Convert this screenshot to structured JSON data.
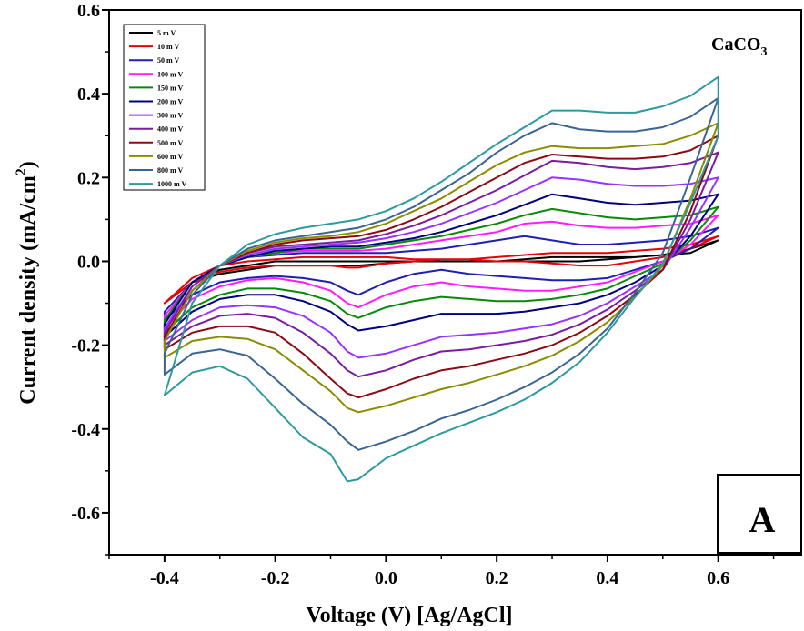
{
  "chart_data": {
    "type": "line",
    "xlabel": "Voltage (V) [Ag/AgCl]",
    "ylabel_main": "Current density (mA/cm",
    "ylabel_sup": "2",
    "ylabel_close": ")",
    "annotation_main": "CaCO",
    "annotation_sub": "3",
    "panel_label": "A",
    "legend_position": "top-left",
    "grid": false,
    "xlim": [
      -0.5,
      0.75
    ],
    "ylim": [
      -0.7,
      0.6
    ],
    "xticks": [
      -0.4,
      -0.2,
      0.0,
      0.2,
      0.4,
      0.6
    ],
    "xtick_labels": [
      "-0.4",
      "-0.2",
      "0.0",
      "0.2",
      "0.4",
      "0.6"
    ],
    "yticks": [
      -0.6,
      -0.4,
      -0.2,
      0.0,
      0.2,
      0.4,
      0.6
    ],
    "ytick_labels": [
      "-0.6",
      "-0.4",
      "-0.2",
      "0.0",
      "0.2",
      "0.4",
      "0.6"
    ],
    "anodic_x": [
      -0.4,
      -0.35,
      -0.3,
      -0.25,
      -0.2,
      -0.15,
      -0.1,
      -0.05,
      0.0,
      0.05,
      0.1,
      0.15,
      0.2,
      0.25,
      0.3,
      0.35,
      0.4,
      0.45,
      0.5,
      0.55,
      0.6
    ],
    "cathodic_x": [
      0.6,
      0.55,
      0.5,
      0.45,
      0.4,
      0.35,
      0.3,
      0.25,
      0.2,
      0.15,
      0.1,
      0.05,
      0.0,
      -0.05,
      -0.07,
      -0.1,
      -0.15,
      -0.2,
      -0.25,
      -0.3,
      -0.35,
      -0.4
    ],
    "series": [
      {
        "name": "5 m V",
        "color": "#000000",
        "anodic": [
          -0.1,
          -0.05,
          -0.02,
          -0.01,
          0.0,
          0.0,
          0.0,
          0.0,
          0.0,
          0.0,
          0.0,
          0.0,
          0.0,
          0.005,
          0.01,
          0.01,
          0.01,
          0.01,
          0.015,
          0.02,
          0.05
        ],
        "cathodic": [
          0.05,
          0.03,
          0.015,
          0.01,
          0.005,
          0.0,
          0.0,
          0.0,
          0.0,
          0.0,
          0.0,
          0.0,
          -0.005,
          -0.01,
          -0.01,
          -0.01,
          -0.01,
          -0.01,
          -0.02,
          -0.03,
          -0.05,
          -0.1
        ]
      },
      {
        "name": "10 m V",
        "color": "#e8000b",
        "anodic": [
          -0.1,
          -0.04,
          -0.01,
          0.0,
          0.005,
          0.01,
          0.01,
          0.01,
          0.01,
          0.005,
          0.005,
          0.005,
          0.01,
          0.015,
          0.02,
          0.02,
          0.02,
          0.025,
          0.03,
          0.04,
          0.06
        ],
        "cathodic": [
          0.06,
          0.03,
          0.01,
          0.0,
          -0.01,
          -0.01,
          -0.005,
          0.0,
          0.0,
          0.005,
          0.005,
          0.0,
          -0.005,
          -0.015,
          -0.015,
          -0.01,
          -0.01,
          -0.01,
          -0.015,
          -0.025,
          -0.05,
          -0.1
        ]
      },
      {
        "name": "50 m V",
        "color": "#1f1fb4",
        "anodic": [
          -0.12,
          -0.05,
          -0.01,
          0.01,
          0.015,
          0.02,
          0.02,
          0.02,
          0.02,
          0.025,
          0.03,
          0.04,
          0.05,
          0.06,
          0.05,
          0.04,
          0.04,
          0.045,
          0.05,
          0.06,
          0.08
        ],
        "cathodic": [
          0.08,
          0.03,
          0.0,
          -0.02,
          -0.04,
          -0.045,
          -0.045,
          -0.04,
          -0.035,
          -0.03,
          -0.02,
          -0.03,
          -0.05,
          -0.08,
          -0.07,
          -0.05,
          -0.04,
          -0.035,
          -0.04,
          -0.05,
          -0.08,
          -0.14
        ]
      },
      {
        "name": "100 m V",
        "color": "#ff1aff",
        "anodic": [
          -0.13,
          -0.05,
          -0.01,
          0.01,
          0.02,
          0.025,
          0.025,
          0.025,
          0.03,
          0.04,
          0.05,
          0.06,
          0.07,
          0.09,
          0.095,
          0.085,
          0.08,
          0.08,
          0.085,
          0.09,
          0.11
        ],
        "cathodic": [
          0.11,
          0.04,
          0.0,
          -0.025,
          -0.05,
          -0.06,
          -0.07,
          -0.07,
          -0.065,
          -0.06,
          -0.05,
          -0.06,
          -0.08,
          -0.11,
          -0.1,
          -0.07,
          -0.05,
          -0.04,
          -0.045,
          -0.06,
          -0.09,
          -0.16
        ]
      },
      {
        "name": "150 m V",
        "color": "#088a08",
        "anodic": [
          -0.14,
          -0.05,
          -0.01,
          0.01,
          0.02,
          0.03,
          0.03,
          0.03,
          0.04,
          0.05,
          0.06,
          0.075,
          0.09,
          0.11,
          0.125,
          0.115,
          0.105,
          0.1,
          0.105,
          0.11,
          0.13
        ],
        "cathodic": [
          0.13,
          0.05,
          -0.005,
          -0.035,
          -0.065,
          -0.08,
          -0.09,
          -0.095,
          -0.095,
          -0.09,
          -0.085,
          -0.095,
          -0.11,
          -0.135,
          -0.125,
          -0.095,
          -0.075,
          -0.065,
          -0.065,
          -0.08,
          -0.11,
          -0.17
        ]
      },
      {
        "name": "200 m V",
        "color": "#000080",
        "anodic": [
          -0.15,
          -0.05,
          -0.01,
          0.01,
          0.025,
          0.03,
          0.035,
          0.035,
          0.045,
          0.055,
          0.07,
          0.09,
          0.11,
          0.135,
          0.16,
          0.15,
          0.14,
          0.135,
          0.14,
          0.145,
          0.16
        ],
        "cathodic": [
          0.16,
          0.06,
          -0.01,
          -0.05,
          -0.08,
          -0.1,
          -0.11,
          -0.12,
          -0.125,
          -0.125,
          -0.125,
          -0.14,
          -0.155,
          -0.165,
          -0.15,
          -0.12,
          -0.095,
          -0.08,
          -0.08,
          -0.09,
          -0.12,
          -0.18
        ]
      },
      {
        "name": "300 m V",
        "color": "#9932ff",
        "anodic": [
          -0.16,
          -0.06,
          -0.01,
          0.015,
          0.03,
          0.035,
          0.04,
          0.045,
          0.055,
          0.07,
          0.09,
          0.115,
          0.14,
          0.17,
          0.2,
          0.195,
          0.185,
          0.18,
          0.18,
          0.185,
          0.2
        ],
        "cathodic": [
          0.2,
          0.08,
          -0.02,
          -0.06,
          -0.1,
          -0.13,
          -0.15,
          -0.16,
          -0.17,
          -0.175,
          -0.18,
          -0.2,
          -0.22,
          -0.23,
          -0.215,
          -0.17,
          -0.13,
          -0.11,
          -0.105,
          -0.11,
          -0.14,
          -0.19
        ]
      },
      {
        "name": "400 m V",
        "color": "#7a1c9e",
        "anodic": [
          -0.17,
          -0.06,
          -0.01,
          0.02,
          0.035,
          0.04,
          0.045,
          0.05,
          0.065,
          0.085,
          0.11,
          0.14,
          0.17,
          0.205,
          0.24,
          0.235,
          0.225,
          0.22,
          0.225,
          0.235,
          0.26
        ],
        "cathodic": [
          0.26,
          0.1,
          -0.02,
          -0.07,
          -0.115,
          -0.15,
          -0.175,
          -0.19,
          -0.2,
          -0.21,
          -0.215,
          -0.235,
          -0.26,
          -0.275,
          -0.26,
          -0.22,
          -0.17,
          -0.135,
          -0.125,
          -0.13,
          -0.155,
          -0.2
        ]
      },
      {
        "name": "500 m V",
        "color": "#8b0a14",
        "anodic": [
          -0.18,
          -0.07,
          -0.01,
          0.02,
          0.04,
          0.05,
          0.055,
          0.06,
          0.075,
          0.1,
          0.13,
          0.165,
          0.2,
          0.235,
          0.255,
          0.25,
          0.245,
          0.245,
          0.25,
          0.265,
          0.3
        ],
        "cathodic": [
          0.3,
          0.12,
          -0.02,
          -0.08,
          -0.13,
          -0.17,
          -0.2,
          -0.22,
          -0.235,
          -0.25,
          -0.26,
          -0.28,
          -0.305,
          -0.325,
          -0.315,
          -0.28,
          -0.22,
          -0.17,
          -0.155,
          -0.155,
          -0.17,
          -0.21
        ]
      },
      {
        "name": "600 m V",
        "color": "#8c8c00",
        "anodic": [
          -0.19,
          -0.07,
          -0.01,
          0.025,
          0.045,
          0.055,
          0.06,
          0.07,
          0.09,
          0.12,
          0.15,
          0.19,
          0.23,
          0.26,
          0.275,
          0.27,
          0.27,
          0.275,
          0.28,
          0.3,
          0.33
        ],
        "cathodic": [
          0.33,
          0.15,
          -0.01,
          -0.085,
          -0.145,
          -0.19,
          -0.225,
          -0.25,
          -0.27,
          -0.29,
          -0.305,
          -0.325,
          -0.345,
          -0.36,
          -0.35,
          -0.31,
          -0.26,
          -0.21,
          -0.185,
          -0.18,
          -0.19,
          -0.23
        ]
      },
      {
        "name": "800 m V",
        "color": "#3a6592",
        "anodic": [
          -0.22,
          -0.08,
          -0.01,
          0.03,
          0.05,
          0.06,
          0.07,
          0.08,
          0.1,
          0.13,
          0.17,
          0.21,
          0.26,
          0.3,
          0.33,
          0.315,
          0.31,
          0.31,
          0.32,
          0.345,
          0.39
        ],
        "cathodic": [
          0.39,
          0.2,
          0.02,
          -0.075,
          -0.16,
          -0.22,
          -0.265,
          -0.3,
          -0.33,
          -0.355,
          -0.375,
          -0.405,
          -0.43,
          -0.45,
          -0.43,
          -0.39,
          -0.34,
          -0.28,
          -0.225,
          -0.21,
          -0.22,
          -0.27
        ]
      },
      {
        "name": "1000 m V",
        "color": "#2d9aa0",
        "anodic": [
          -0.32,
          -0.1,
          -0.01,
          0.04,
          0.065,
          0.08,
          0.09,
          0.1,
          0.12,
          0.15,
          0.19,
          0.235,
          0.28,
          0.32,
          0.36,
          0.36,
          0.355,
          0.355,
          0.37,
          0.395,
          0.44
        ],
        "cathodic": [
          0.3,
          0.14,
          -0.005,
          -0.085,
          -0.17,
          -0.24,
          -0.29,
          -0.33,
          -0.36,
          -0.385,
          -0.41,
          -0.44,
          -0.47,
          -0.52,
          -0.525,
          -0.46,
          -0.42,
          -0.35,
          -0.28,
          -0.25,
          -0.265,
          -0.32
        ]
      }
    ]
  }
}
